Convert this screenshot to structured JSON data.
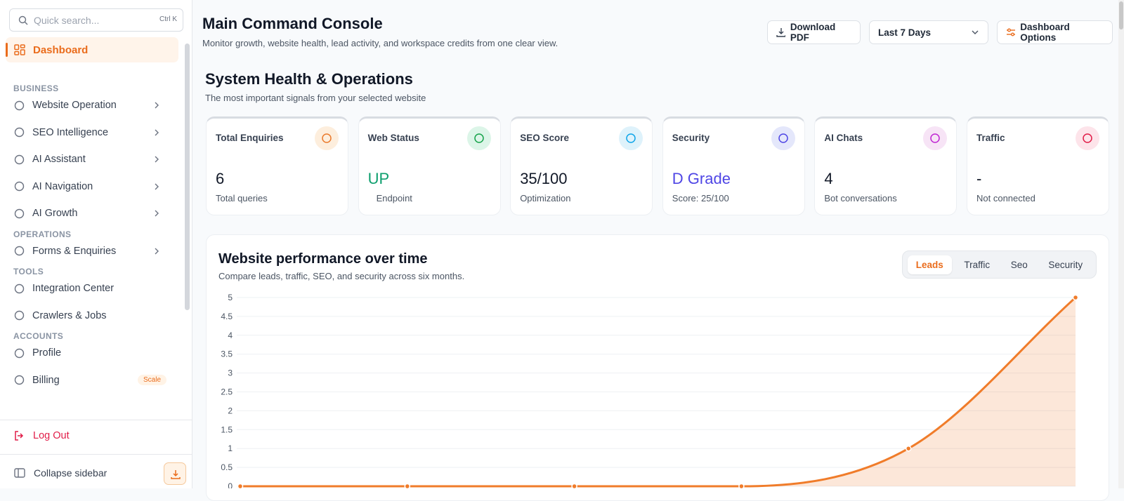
{
  "sidebar": {
    "search": "Quick search...",
    "shortcut": "Ctrl K",
    "active": "Dashboard",
    "sections": [
      {
        "label": "BUSINESS",
        "items": [
          "Website Operation",
          "SEO Intelligence",
          "AI Assistant",
          "AI Navigation",
          "AI Growth"
        ]
      },
      {
        "label": "OPERATIONS",
        "items": [
          "Forms & Enquiries"
        ]
      },
      {
        "label": "TOOLS",
        "items": [
          "Integration Center",
          "Crawlers & Jobs"
        ]
      },
      {
        "label": "ACCOUNTS",
        "items": [
          "Profile",
          "Billing"
        ]
      }
    ],
    "badge": "Scale",
    "logout": "Log Out",
    "collapse": "Collapse sidebar"
  },
  "header": {
    "title": "Main Command Console",
    "subtitle": "Monitor growth, website health, lead activity, and workspace credits from one clear view.",
    "download": "Download PDF",
    "range": "Last 7 Days",
    "options": "Dashboard Options"
  },
  "section": {
    "title": "System Health & Operations",
    "subtitle": "The most important signals from your selected website"
  },
  "cards": [
    {
      "title": "Total Enquiries",
      "value": "6",
      "sub": "Total queries"
    },
    {
      "title": "Web Status",
      "value": "UP",
      "sub": "Endpoint"
    },
    {
      "title": "SEO Score",
      "value": "35/100",
      "sub": "Optimization"
    },
    {
      "title": "Security",
      "value": "D Grade",
      "sub": "Score: 25/100"
    },
    {
      "title": "AI Chats",
      "value": "4",
      "sub": "Bot conversations"
    },
    {
      "title": "Traffic",
      "value": "-",
      "sub": "Not connected"
    }
  ],
  "performance": {
    "title": "Website performance over time",
    "subtitle": "Compare leads, traffic, SEO, and security across six months.",
    "tabs": [
      "Leads",
      "Traffic",
      "Seo",
      "Security"
    ],
    "active_tab": 0
  },
  "chart_data": {
    "type": "line",
    "values": [
      0,
      0,
      0,
      0,
      1,
      5
    ],
    "color": "#f07c2a",
    "ylim": [
      0,
      5
    ],
    "yticks": [
      0,
      0.5,
      1,
      1.5,
      2,
      2.5,
      3,
      3.5,
      4,
      4.5,
      5
    ],
    "grid": true
  }
}
